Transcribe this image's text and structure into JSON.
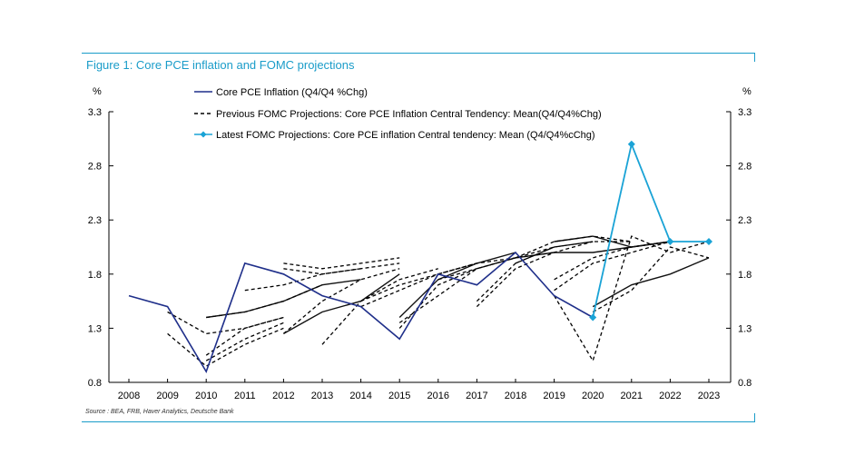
{
  "figure": {
    "title": "Figure 1: Core PCE inflation and FOMC projections",
    "source": "Source : BEA, FRB, Haver Analytics, Deutsche Bank",
    "accent_color": "#1a9cc9"
  },
  "chart_data": {
    "type": "line",
    "categories": [
      "2008",
      "2009",
      "2010",
      "2011",
      "2012",
      "2013",
      "2014",
      "2015",
      "2016",
      "2017",
      "2018",
      "2019",
      "2020",
      "2021",
      "2022",
      "2023"
    ],
    "y_left_label": "%",
    "y_right_label": "%",
    "yticks": [
      "3.3",
      "2.8",
      "2.3",
      "1.8",
      "1.3",
      "0.8"
    ],
    "ylim": [
      0.8,
      3.3
    ],
    "xlim": [
      2008,
      2023
    ],
    "grid": false,
    "legend_position": "top",
    "series": [
      {
        "name": "Core PCE Inflation (Q4/Q4 %Chg)",
        "style": "solid",
        "color": "#1f2f8a",
        "points": [
          [
            2008,
            1.6
          ],
          [
            2009,
            1.5
          ],
          [
            2010,
            0.9
          ],
          [
            2011,
            1.9
          ],
          [
            2012,
            1.8
          ],
          [
            2013,
            1.6
          ],
          [
            2014,
            1.5
          ],
          [
            2015,
            1.2
          ],
          [
            2016,
            1.8
          ],
          [
            2017,
            1.7
          ],
          [
            2018,
            2.0
          ],
          [
            2019,
            1.6
          ],
          [
            2020,
            1.4
          ]
        ]
      },
      {
        "name": "Previous FOMC Projections: Core PCE Inflation Central Tendency: Mean(Q4/Q4%Chg)",
        "style": "dashed",
        "color": "#000000",
        "lines": [
          [
            [
              2009,
              1.25
            ],
            [
              2010,
              0.95
            ],
            [
              2011,
              1.15
            ],
            [
              2012,
              1.3
            ]
          ],
          [
            [
              2009,
              1.45
            ],
            [
              2010,
              1.25
            ],
            [
              2011,
              1.3
            ],
            [
              2012,
              1.4
            ]
          ],
          [
            [
              2010,
              1.0
            ],
            [
              2011,
              1.2
            ],
            [
              2012,
              1.35
            ]
          ],
          [
            [
              2010,
              1.05
            ],
            [
              2011,
              1.3
            ],
            [
              2012,
              1.4
            ]
          ],
          [
            [
              2010,
              1.4
            ],
            [
              2011,
              1.45
            ],
            [
              2012,
              1.55
            ],
            [
              2013,
              1.7
            ]
          ],
          [
            [
              2011,
              1.65
            ],
            [
              2012,
              1.7
            ],
            [
              2013,
              1.8
            ],
            [
              2014,
              1.85
            ]
          ],
          [
            [
              2012,
              1.9
            ],
            [
              2013,
              1.85
            ],
            [
              2014,
              1.9
            ],
            [
              2015,
              1.95
            ]
          ],
          [
            [
              2012,
              1.85
            ],
            [
              2013,
              1.8
            ],
            [
              2014,
              1.85
            ],
            [
              2015,
              1.9
            ]
          ],
          [
            [
              2012,
              1.25
            ],
            [
              2013,
              1.55
            ],
            [
              2014,
              1.75
            ],
            [
              2015,
              1.85
            ]
          ],
          [
            [
              2013,
              1.15
            ],
            [
              2014,
              1.55
            ],
            [
              2015,
              1.75
            ],
            [
              2016,
              1.85
            ]
          ],
          [
            [
              2014,
              1.55
            ],
            [
              2015,
              1.7
            ],
            [
              2016,
              1.8
            ],
            [
              2017,
              1.9
            ]
          ],
          [
            [
              2014,
              1.5
            ],
            [
              2015,
              1.65
            ],
            [
              2016,
              1.8
            ],
            [
              2017,
              1.9
            ]
          ],
          [
            [
              2015,
              1.35
            ],
            [
              2016,
              1.6
            ],
            [
              2017,
              1.85
            ],
            [
              2018,
              1.95
            ]
          ],
          [
            [
              2015,
              1.3
            ],
            [
              2016,
              1.7
            ],
            [
              2017,
              1.85
            ],
            [
              2018,
              1.95
            ]
          ],
          [
            [
              2016,
              1.75
            ],
            [
              2017,
              1.85
            ],
            [
              2018,
              1.95
            ],
            [
              2019,
              2.0
            ]
          ],
          [
            [
              2016,
              1.8
            ],
            [
              2017,
              1.9
            ],
            [
              2018,
              1.95
            ],
            [
              2019,
              2.05
            ]
          ],
          [
            [
              2017,
              1.5
            ],
            [
              2018,
              1.85
            ],
            [
              2019,
              2.0
            ],
            [
              2020,
              2.1
            ]
          ],
          [
            [
              2017,
              1.55
            ],
            [
              2018,
              1.9
            ],
            [
              2019,
              2.05
            ],
            [
              2020,
              2.1
            ]
          ],
          [
            [
              2018,
              1.9
            ],
            [
              2019,
              2.05
            ],
            [
              2020,
              2.1
            ],
            [
              2021,
              2.1
            ]
          ],
          [
            [
              2018,
              1.95
            ],
            [
              2019,
              2.1
            ],
            [
              2020,
              2.15
            ],
            [
              2021,
              2.1
            ]
          ],
          [
            [
              2019,
              1.75
            ],
            [
              2020,
              1.95
            ],
            [
              2021,
              2.05
            ],
            [
              2022,
              2.1
            ]
          ],
          [
            [
              2019,
              1.65
            ],
            [
              2020,
              1.9
            ],
            [
              2021,
              2.0
            ],
            [
              2022,
              2.1
            ]
          ],
          [
            [
              2019,
              1.6
            ],
            [
              2020,
              1.0
            ],
            [
              2021,
              2.15
            ],
            [
              2022,
              2.0
            ],
            [
              2023,
              2.1
            ]
          ],
          [
            [
              2020,
              1.45
            ],
            [
              2021,
              1.65
            ],
            [
              2022,
              2.05
            ],
            [
              2023,
              1.95
            ]
          ]
        ]
      },
      {
        "name": "Latest FOMC Projections: Core PCE inflation Central tendency: Mean (Q4/Q4%cChg)",
        "style": "solid-markers",
        "color": "#1aa3d6",
        "points": [
          [
            2020,
            1.4
          ],
          [
            2021,
            3.0
          ],
          [
            2022,
            2.1
          ],
          [
            2023,
            2.1
          ]
        ]
      }
    ],
    "solid_projection_lines": [
      [
        [
          2010,
          1.4
        ],
        [
          2011,
          1.45
        ],
        [
          2012,
          1.55
        ],
        [
          2013,
          1.7
        ],
        [
          2014,
          1.75
        ]
      ],
      [
        [
          2012,
          1.25
        ],
        [
          2013,
          1.45
        ],
        [
          2014,
          1.55
        ],
        [
          2015,
          1.8
        ]
      ],
      [
        [
          2015,
          1.4
        ],
        [
          2016,
          1.75
        ],
        [
          2017,
          1.9
        ],
        [
          2018,
          2.0
        ]
      ],
      [
        [
          2019,
          2.1
        ],
        [
          2020,
          2.15
        ],
        [
          2021,
          2.05
        ],
        [
          2022,
          2.1
        ]
      ],
      [
        [
          2020,
          1.5
        ],
        [
          2021,
          1.7
        ],
        [
          2022,
          1.8
        ],
        [
          2023,
          1.95
        ]
      ],
      [
        [
          2018,
          1.95
        ],
        [
          2019,
          2.0
        ],
        [
          2020,
          2.0
        ],
        [
          2021,
          2.05
        ],
        [
          2022,
          2.1
        ]
      ]
    ]
  }
}
